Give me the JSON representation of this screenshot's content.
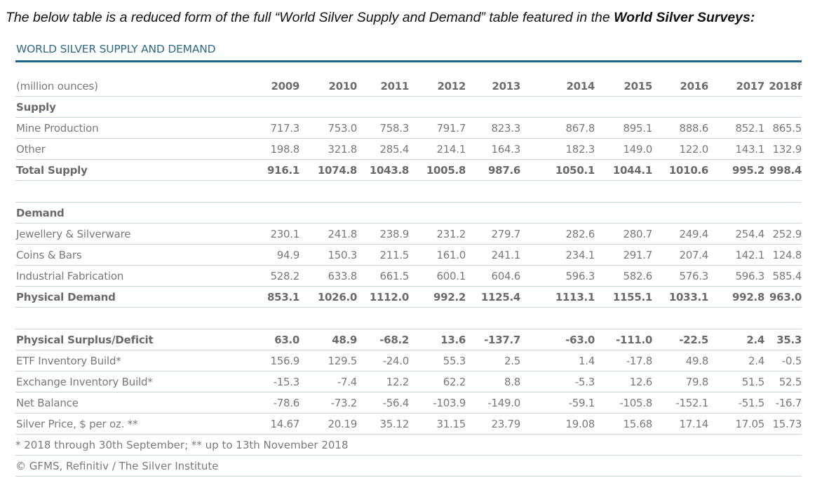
{
  "intro": {
    "text_before": "The below table is a reduced form of the full “World Silver Supply and Demand” table featured in the ",
    "text_bold": "World Silver Surveys:"
  },
  "table": {
    "title": "WORLD SILVER SUPPLY AND DEMAND",
    "unit_label": "(million ounces)",
    "years": [
      "2009",
      "2010",
      "2011",
      "2012",
      "2013",
      "2014",
      "2015",
      "2016",
      "2017",
      "2018f"
    ],
    "supply": {
      "heading": "Supply",
      "rows": [
        {
          "label": "Mine Production",
          "values": [
            "717.3",
            "753.0",
            "758.3",
            "791.7",
            "823.3",
            "867.8",
            "895.1",
            "888.6",
            "852.1",
            "865.5"
          ]
        },
        {
          "label": "Other",
          "values": [
            "198.8",
            "321.8",
            "285.4",
            "214.1",
            "164.3",
            "182.3",
            "149.0",
            "122.0",
            "143.1",
            "132.9"
          ]
        }
      ],
      "total": {
        "label": "Total Supply",
        "values": [
          "916.1",
          "1074.8",
          "1043.8",
          "1005.8",
          "987.6",
          "1050.1",
          "1044.1",
          "1010.6",
          "995.2",
          "998.4"
        ]
      }
    },
    "demand": {
      "heading": "Demand",
      "rows": [
        {
          "label": "Jewellery & Silverware",
          "values": [
            "230.1",
            "241.8",
            "238.9",
            "231.2",
            "279.7",
            "282.6",
            "280.7",
            "249.4",
            "254.4",
            "252.9"
          ]
        },
        {
          "label": "Coins & Bars",
          "values": [
            "94.9",
            "150.3",
            "211.5",
            "161.0",
            "241.1",
            "234.1",
            "291.7",
            "207.4",
            "142.1",
            "124.8"
          ]
        },
        {
          "label": "Industrial Fabrication",
          "values": [
            "528.2",
            "633.8",
            "661.5",
            "600.1",
            "604.6",
            "596.3",
            "582.6",
            "576.3",
            "596.3",
            "585.4"
          ]
        }
      ],
      "total": {
        "label": "Physical Demand",
        "values": [
          "853.1",
          "1026.0",
          "1112.0",
          "992.2",
          "1125.4",
          "1113.1",
          "1155.1",
          "1033.1",
          "992.8",
          "963.0"
        ]
      }
    },
    "balance": {
      "surplus": {
        "label": "Physical Surplus/Deficit",
        "values": [
          "63.0",
          "48.9",
          "-68.2",
          "13.6",
          "-137.7",
          "-63.0",
          "-111.0",
          "-22.5",
          "2.4",
          "35.3"
        ]
      },
      "rows": [
        {
          "label": "ETF Inventory Build*",
          "values": [
            "156.9",
            "129.5",
            "-24.0",
            "55.3",
            "2.5",
            "1.4",
            "-17.8",
            "49.8",
            "2.4",
            "-0.5"
          ]
        },
        {
          "label": "Exchange Inventory Build*",
          "values": [
            "-15.3",
            "-7.4",
            "12.2",
            "62.2",
            "8.8",
            "-5.3",
            "12.6",
            "79.8",
            "51.5",
            "52.5"
          ]
        },
        {
          "label": "Net Balance",
          "values": [
            "-78.6",
            "-73.2",
            "-56.4",
            "-103.9",
            "-149.0",
            "-59.1",
            "-105.8",
            "-152.1",
            "-51.5",
            "-16.7"
          ]
        },
        {
          "label": "Silver Price, $ per oz. **",
          "values": [
            "14.67",
            "20.19",
            "35.12",
            "31.15",
            "23.79",
            "19.08",
            "15.68",
            "17.14",
            "17.05",
            "15.73"
          ]
        }
      ]
    },
    "footnote": "* 2018 through 30th September; ** up to 13th November 2018",
    "source": "© GFMS, Refinitiv / The Silver Institute"
  },
  "colors": {
    "title": "#2e6b86",
    "rule": "#1e6488",
    "row_border": "#c9d4dc",
    "text": "#7a7a7a"
  }
}
